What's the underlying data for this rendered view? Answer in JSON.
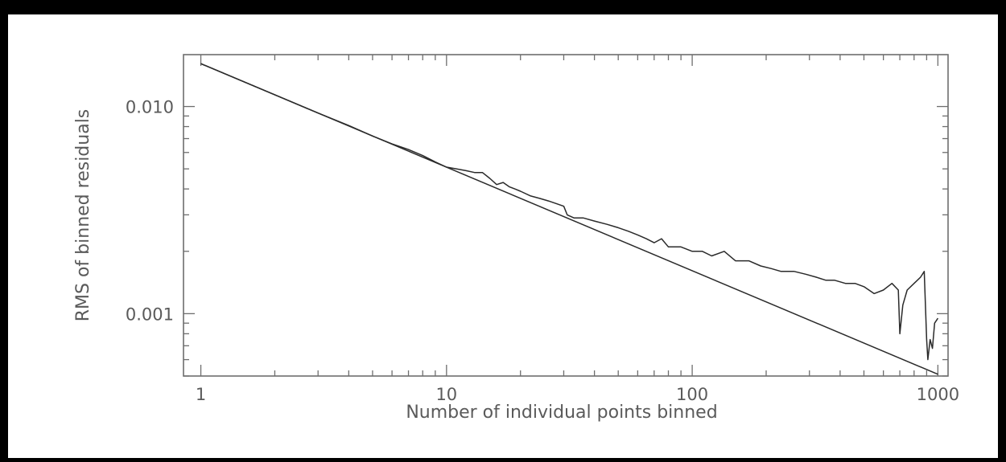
{
  "chart_data": {
    "type": "line",
    "xlabel": "Number of individual points binned",
    "ylabel": "RMS of binned residuals",
    "x_scale": "log",
    "y_scale": "log",
    "xlim": [
      0.85,
      1100
    ],
    "ylim": [
      0.0005,
      0.0178
    ],
    "x_ticks": [
      {
        "value": 1,
        "label": "1"
      },
      {
        "value": 10,
        "label": "10"
      },
      {
        "value": 100,
        "label": "100"
      },
      {
        "value": 1000,
        "label": "1000"
      }
    ],
    "y_ticks": [
      {
        "value": 0.001,
        "label": "0.001"
      },
      {
        "value": 0.01,
        "label": "0.010"
      }
    ],
    "grid": false,
    "legend": "none",
    "colors": {
      "line": "#2a2a2a",
      "axis": "#6e6e6e",
      "text": "#5a5a5a"
    },
    "series": [
      {
        "role": "expected 1/sqrt(N) line",
        "x": [
          1,
          1000
        ],
        "values": [
          0.0161,
          0.00051
        ]
      },
      {
        "role": "measured RMS",
        "x": [
          1,
          2,
          3,
          4,
          5,
          6,
          7,
          8,
          9,
          10,
          11,
          12,
          13,
          14,
          15,
          16,
          17,
          18,
          19,
          20,
          22,
          24,
          26,
          28,
          30,
          31,
          33,
          36,
          40,
          45,
          50,
          55,
          60,
          65,
          70,
          75,
          80,
          90,
          100,
          110,
          120,
          135,
          150,
          170,
          190,
          210,
          230,
          260,
          290,
          320,
          350,
          380,
          420,
          460,
          500,
          550,
          600,
          650,
          690,
          700,
          720,
          750,
          800,
          850,
          880,
          900,
          910,
          930,
          950,
          970,
          1000
        ],
        "values": [
          0.0161,
          0.0114,
          0.0093,
          0.0081,
          0.0072,
          0.0066,
          0.0062,
          0.0058,
          0.0054,
          0.0051,
          0.005,
          0.0049,
          0.0048,
          0.0048,
          0.0045,
          0.0042,
          0.0043,
          0.0041,
          0.004,
          0.0039,
          0.0037,
          0.0036,
          0.0035,
          0.0034,
          0.0033,
          0.003,
          0.0029,
          0.0029,
          0.0028,
          0.0027,
          0.0026,
          0.0025,
          0.0024,
          0.0023,
          0.0022,
          0.0023,
          0.0021,
          0.0021,
          0.002,
          0.002,
          0.0019,
          0.002,
          0.0018,
          0.0018,
          0.0017,
          0.00165,
          0.0016,
          0.0016,
          0.00155,
          0.0015,
          0.00145,
          0.00145,
          0.0014,
          0.0014,
          0.00135,
          0.00125,
          0.0013,
          0.0014,
          0.0013,
          0.0008,
          0.0011,
          0.0013,
          0.0014,
          0.0015,
          0.0016,
          0.00075,
          0.0006,
          0.00075,
          0.00068,
          0.0009,
          0.00095
        ]
      }
    ]
  }
}
